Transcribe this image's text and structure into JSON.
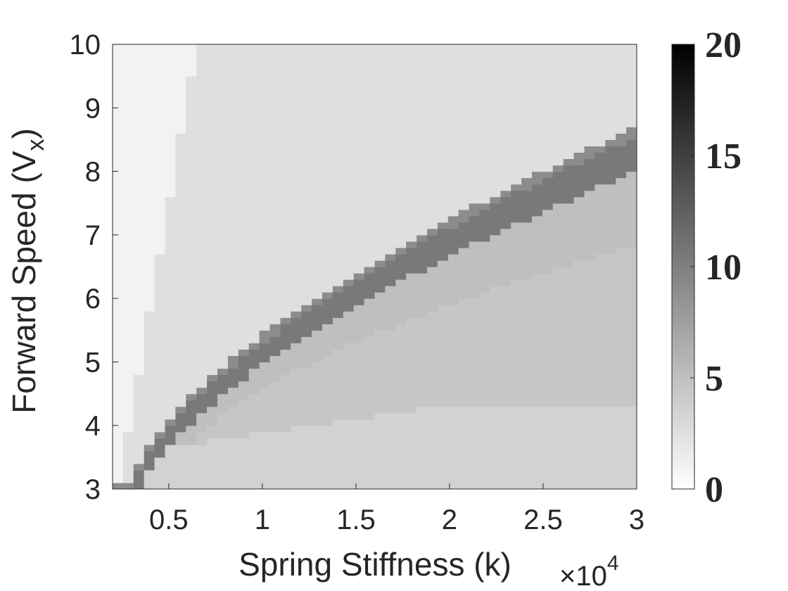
{
  "chart_data": {
    "type": "heatmap",
    "title": "",
    "xlabel": "Spring Stiffness (k)",
    "x_multiplier_text": "×10",
    "x_multiplier_exponent": "4",
    "ylabel": "Forward Speed (V",
    "ylabel_subscript": "x",
    "ylabel_close": ")",
    "x_range": [
      2000,
      30000
    ],
    "y_range": [
      3,
      10
    ],
    "x_ticks": [
      {
        "value": 5000,
        "label": "0.5"
      },
      {
        "value": 10000,
        "label": "1"
      },
      {
        "value": 15000,
        "label": "1.5"
      },
      {
        "value": 20000,
        "label": "2"
      },
      {
        "value": 25000,
        "label": "2.5"
      },
      {
        "value": 30000,
        "label": "3"
      }
    ],
    "y_ticks": [
      {
        "value": 3,
        "label": "3"
      },
      {
        "value": 4,
        "label": "4"
      },
      {
        "value": 5,
        "label": "5"
      },
      {
        "value": 6,
        "label": "6"
      },
      {
        "value": 7,
        "label": "7"
      },
      {
        "value": 8,
        "label": "8"
      },
      {
        "value": 9,
        "label": "9"
      },
      {
        "value": 10,
        "label": "10"
      }
    ],
    "colorbar": {
      "range": [
        0,
        20
      ],
      "colormap": "gray-reversed",
      "ticks": [
        {
          "value": 0,
          "label": "0"
        },
        {
          "value": 5,
          "label": "5"
        },
        {
          "value": 10,
          "label": "10"
        },
        {
          "value": 15,
          "label": "15"
        },
        {
          "value": 20,
          "label": "20"
        }
      ]
    },
    "grid": false,
    "regions": [
      {
        "label": "low-stiffness band",
        "value": 1.0
      },
      {
        "label": "upper background",
        "value": 2.5
      },
      {
        "label": "lower background",
        "value": 3.5
      },
      {
        "label": "intermediate band",
        "value": 5.0
      },
      {
        "label": "transition band edge",
        "value": 9.0
      },
      {
        "label": "transition band core",
        "value": 10.5
      }
    ]
  }
}
